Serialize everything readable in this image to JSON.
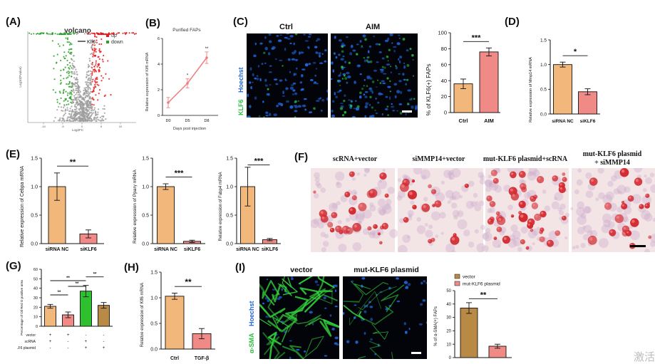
{
  "panels": {
    "A": {
      "label": "(A)",
      "title": "volcano",
      "legend": {
        "up": "up",
        "down": "down",
        "gene": "Klf6"
      },
      "ylabel": "Log10(Pvalue)",
      "xlabel": "Log2FC",
      "xticks": [
        "-10",
        "-5",
        "0",
        "5",
        "10"
      ],
      "colors": {
        "up": "#e41a1c",
        "down": "#2ca02c",
        "ns": "#9e9e9e"
      }
    },
    "B": {
      "label": "(B)",
      "title": "Purified FAPs",
      "ylabel": "Relative expression of Klf6 mRNA",
      "xlabel": "Days post injection",
      "sig": [
        "*",
        "**"
      ]
    },
    "C": {
      "label": "(C)",
      "ctrl_title": "Ctrl",
      "aim_title": "AIM",
      "side_label_1": "KLF6",
      "side_label_2": "Hoechst",
      "ylabel": "% of KLF6(+) FAPs",
      "sig": "***"
    },
    "D": {
      "label": "(D)",
      "ylabel": "Relative expression of Mmp14 mRNA",
      "sig": "*"
    },
    "E": {
      "label": "(E)"
    },
    "E1": {
      "ylabel": "Relative expression of Cebpa mRNA",
      "sig": "**"
    },
    "E2": {
      "ylabel": "Relative expression of Pparγ mRNA",
      "sig": "***"
    },
    "E3": {
      "ylabel": "Relative expression of Fabp4 mRNA",
      "sig": "***"
    },
    "F": {
      "label": "(F)",
      "captions": [
        "scRNA+vector",
        "siMMP14+vector",
        "mut-KLF6 plasmid+scRNA",
        "mut-KLF6 plasmid",
        "+ siMMP14"
      ]
    },
    "G": {
      "label": "(G)",
      "ylabel": "Percentage of Oil Red O positive area",
      "row_labels": [
        "vector",
        "scRNA",
        "mut-KLF6 plasmid"
      ],
      "row_signs": [
        [
          "+",
          "+",
          "-",
          "-"
        ],
        [
          "+",
          "-",
          "+",
          "-"
        ],
        [
          "-",
          "-",
          "+",
          "+"
        ]
      ],
      "sig": [
        "**",
        "**",
        "**",
        "**"
      ]
    },
    "H": {
      "label": "(H)",
      "ylabel": "Relative expression of Klf6 mRNA",
      "sig": "**"
    },
    "I": {
      "label": "(I)",
      "vector_title": "vector",
      "mut_title": "mut-KLF6 plasmid",
      "side_label_1": "α-SMA",
      "side_label_2": "Hoechst",
      "ylabel": "% of α-SMA(+) FAPs",
      "sig": "**",
      "legend": [
        "vector",
        "mut-KLF6 plasmid"
      ]
    }
  },
  "colors": {
    "orange": "#f2b77a",
    "pink": "#f08a86",
    "green": "#2ec02e",
    "brown": "#b98a45",
    "line": "#ef7f7f",
    "hoechst": "#1f64d8",
    "klf6": "#2bbf3f",
    "black": "#111111"
  },
  "chart_data": [
    {
      "id": "B",
      "type": "line",
      "title": "Purified FAPs",
      "categories": [
        "D0",
        "D5",
        "D8"
      ],
      "values": [
        1.0,
        2.5,
        4.5
      ],
      "errors": [
        0.4,
        0.35,
        0.45
      ],
      "ylim": [
        0,
        6
      ],
      "yticks": [
        0,
        2,
        4,
        6
      ],
      "xlabel": "Days post injection",
      "ylabel": "Relative expression of Klf6 mRNA"
    },
    {
      "id": "C",
      "type": "bar",
      "categories": [
        "Ctrl",
        "AIM"
      ],
      "values": [
        36,
        76
      ],
      "errors": [
        6,
        5
      ],
      "ylim": [
        0,
        100
      ],
      "yticks": [
        0,
        20,
        40,
        60,
        80,
        100
      ],
      "ylabel": "% of KLF6(+) FAPs"
    },
    {
      "id": "D",
      "type": "bar",
      "categories": [
        "siRNA NC",
        "siKLF6"
      ],
      "values": [
        1.0,
        0.45
      ],
      "errors": [
        0.05,
        0.06
      ],
      "ylim": [
        0,
        1.5
      ],
      "yticks": [
        0.0,
        0.5,
        1.0,
        1.5
      ],
      "ylabel": "Relative expression of Mmp14 mRNA"
    },
    {
      "id": "E1",
      "type": "bar",
      "categories": [
        "siRNA NC",
        "siKLF6"
      ],
      "values": [
        1.0,
        0.17
      ],
      "errors": [
        0.24,
        0.07
      ],
      "ylim": [
        0,
        1.5
      ],
      "yticks": [
        0.0,
        0.5,
        1.0,
        1.5
      ],
      "ylabel": "Relative expression of Cebpa mRNA"
    },
    {
      "id": "E2",
      "type": "bar",
      "categories": [
        "siRNA NC",
        "siKLF6"
      ],
      "values": [
        1.0,
        0.04
      ],
      "errors": [
        0.05,
        0.02
      ],
      "ylim": [
        0,
        1.5
      ],
      "yticks": [
        0.0,
        0.5,
        1.0,
        1.5
      ],
      "ylabel": "Relative expression of Pparγ mRNA"
    },
    {
      "id": "E3",
      "type": "bar",
      "categories": [
        "siRNA NC",
        "siKLF6"
      ],
      "values": [
        1.0,
        0.07
      ],
      "errors": [
        0.34,
        0.02
      ],
      "ylim": [
        0,
        1.5
      ],
      "yticks": [
        0.0,
        0.5,
        1.0,
        1.5
      ],
      "ylabel": "Relative expression of Fabp4 mRNA"
    },
    {
      "id": "G",
      "type": "bar",
      "categories": [
        "",
        "",
        "",
        ""
      ],
      "values": [
        21,
        12,
        37,
        22
      ],
      "errors": [
        2,
        3,
        6,
        3
      ],
      "ylim": [
        0,
        60
      ],
      "yticks": [
        0,
        10,
        20,
        30,
        40,
        50,
        60
      ],
      "ylabel": "Percentage of Oil Red O positive area"
    },
    {
      "id": "H",
      "type": "bar",
      "categories": [
        "Ctrl",
        "TGF-β"
      ],
      "values": [
        1.03,
        0.3
      ],
      "errors": [
        0.06,
        0.1
      ],
      "ylim": [
        0,
        1.5
      ],
      "yticks": [
        0.0,
        0.5,
        1.0,
        1.5
      ],
      "ylabel": "Relative expression of Klf6 mRNA"
    },
    {
      "id": "I",
      "type": "bar",
      "categories": [
        "",
        ""
      ],
      "values": [
        37,
        8.5
      ],
      "errors": [
        4,
        1.5
      ],
      "ylim": [
        0,
        50
      ],
      "yticks": [
        0,
        10,
        20,
        30,
        40,
        50
      ],
      "ylabel": "% of α-SMA(+) FAPs",
      "legend": [
        "vector",
        "mut-KLF6 plasmid"
      ]
    }
  ],
  "watermark": "激活"
}
